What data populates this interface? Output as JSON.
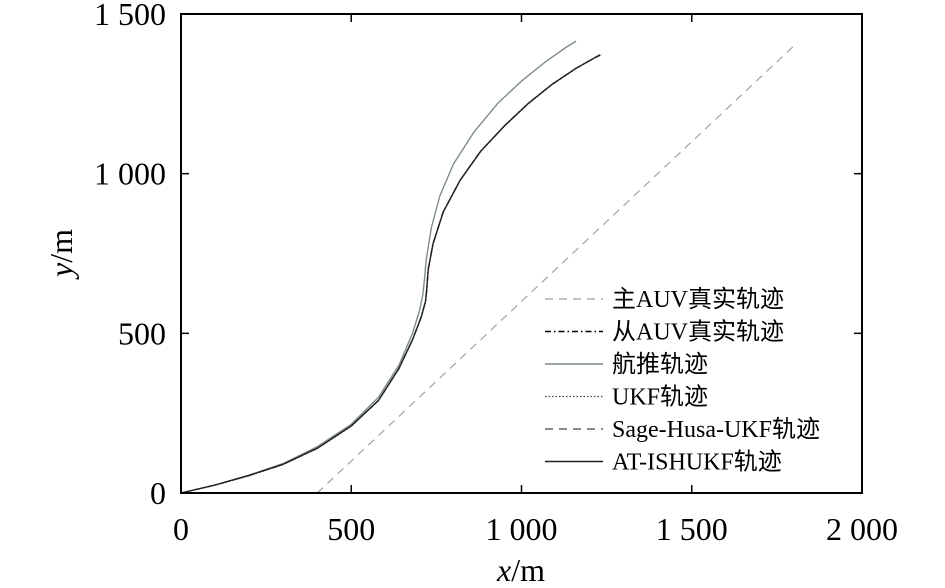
{
  "chart_data": {
    "type": "line",
    "title": "",
    "xlabel_var": "x",
    "xlabel_unit": "/m",
    "ylabel_var": "y",
    "ylabel_unit": "/m",
    "xlim": [
      0,
      2000
    ],
    "ylim": [
      0,
      1500
    ],
    "grid": false,
    "legend_position": "center-right",
    "x_ticks": [
      0,
      500,
      1000,
      1500,
      2000
    ],
    "x_tick_labels": [
      "0",
      "500",
      "1 000",
      "1 500",
      "2 000"
    ],
    "y_ticks": [
      0,
      500,
      1000,
      1500
    ],
    "y_tick_labels": [
      "0",
      "500",
      "1 000",
      "1 500"
    ],
    "series": [
      {
        "name": "主AUV真实轨迹",
        "style": "dashed-light",
        "color": "#9aa5a5",
        "x": [
          400,
          1810
        ],
        "y": [
          0,
          1410
        ]
      },
      {
        "name": "从AUV真实轨迹",
        "style": "dashdot",
        "color": "#000000",
        "x": [
          0,
          100,
          200,
          300,
          400,
          500,
          580,
          640,
          680,
          705,
          718,
          722,
          726,
          740,
          770,
          820,
          880,
          950,
          1020,
          1090,
          1160,
          1210,
          1230
        ],
        "y": [
          0,
          25,
          55,
          90,
          140,
          210,
          290,
          390,
          480,
          550,
          600,
          640,
          700,
          780,
          880,
          980,
          1070,
          1150,
          1220,
          1280,
          1330,
          1360,
          1372
        ]
      },
      {
        "name": "航推轨迹",
        "style": "solid-gray",
        "color": "#7f8c8c",
        "x": [
          0,
          100,
          200,
          300,
          400,
          500,
          580,
          640,
          680,
          700,
          710,
          715,
          720,
          735,
          760,
          800,
          860,
          930,
          1000,
          1070,
          1130,
          1160
        ],
        "y": [
          0,
          25,
          56,
          92,
          145,
          215,
          300,
          400,
          500,
          570,
          620,
          670,
          730,
          830,
          930,
          1030,
          1130,
          1220,
          1290,
          1350,
          1395,
          1415
        ]
      },
      {
        "name": "UKF轨迹",
        "style": "dotted",
        "color": "#444444",
        "x": [
          0,
          100,
          200,
          300,
          400,
          500,
          580,
          640,
          680,
          705,
          718,
          722,
          726,
          740,
          770,
          820,
          880,
          950,
          1020,
          1090,
          1160,
          1210,
          1235
        ],
        "y": [
          0,
          24,
          54,
          89,
          139,
          209,
          289,
          389,
          479,
          549,
          599,
          639,
          699,
          779,
          879,
          979,
          1069,
          1149,
          1219,
          1279,
          1329,
          1359,
          1374
        ]
      },
      {
        "name": "Sage-Husa-UKF轨迹",
        "style": "dashed",
        "color": "#444444",
        "x": [
          0,
          100,
          200,
          300,
          400,
          500,
          580,
          640,
          680,
          705,
          718,
          722,
          726,
          740,
          770,
          820,
          880,
          950,
          1020,
          1090,
          1160,
          1210,
          1232
        ],
        "y": [
          0,
          25,
          55,
          90,
          140,
          210,
          290,
          390,
          480,
          550,
          600,
          640,
          700,
          780,
          880,
          980,
          1070,
          1150,
          1220,
          1280,
          1330,
          1360,
          1371
        ]
      },
      {
        "name": "AT-ISHUKF轨迹",
        "style": "solid-dark",
        "color": "#222222",
        "x": [
          0,
          100,
          200,
          300,
          400,
          500,
          580,
          640,
          680,
          705,
          718,
          722,
          726,
          740,
          770,
          820,
          880,
          950,
          1020,
          1090,
          1160,
          1210,
          1230
        ],
        "y": [
          0,
          25,
          55,
          90,
          140,
          210,
          290,
          390,
          480,
          550,
          600,
          640,
          700,
          780,
          880,
          980,
          1070,
          1150,
          1220,
          1280,
          1330,
          1360,
          1372
        ]
      }
    ]
  }
}
